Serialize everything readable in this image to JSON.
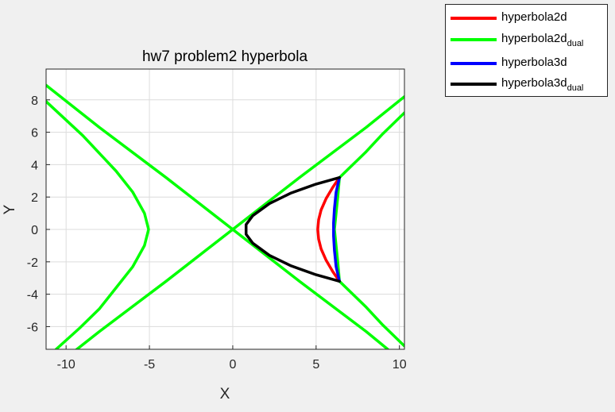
{
  "chart_data": {
    "type": "line",
    "title": "hw7 problem2 hyperbola",
    "xlabel": "X",
    "ylabel": "Y",
    "xlim": [
      -11.2,
      10.3
    ],
    "ylim": [
      -7.4,
      9.9
    ],
    "xticks": [
      -10,
      -5,
      0,
      5,
      10
    ],
    "xtick_labels": [
      "-10",
      "-5",
      "0",
      "5",
      "10"
    ],
    "yticks": [
      -6,
      -4,
      -2,
      0,
      2,
      4,
      6,
      8
    ],
    "ytick_labels": [
      "-6",
      "-4",
      "-2",
      "0",
      "2",
      "4",
      "6",
      "8"
    ],
    "grid": true,
    "legend_position": "outside top-right",
    "series": [
      {
        "name": "hyperbola2d",
        "color": "#ff0000",
        "style": "solid",
        "segments": [
          [
            [
              6.4,
              3.2
            ],
            [
              6.0,
              2.6
            ],
            [
              5.6,
              1.9
            ],
            [
              5.3,
              1.2
            ],
            [
              5.15,
              0.6
            ],
            [
              5.1,
              0.0
            ],
            [
              5.15,
              -0.6
            ],
            [
              5.3,
              -1.2
            ],
            [
              5.6,
              -1.9
            ],
            [
              6.0,
              -2.6
            ],
            [
              6.4,
              -3.2
            ]
          ]
        ]
      },
      {
        "name": "hyperbola2d",
        "name_subscript": "dual",
        "color": "#00ff00",
        "style": "solid",
        "segments": [
          [
            [
              -11.2,
              8.9
            ],
            [
              -8.0,
              6.3
            ],
            [
              -4.0,
              3.2
            ],
            [
              0.0,
              0.0
            ],
            [
              4.0,
              -3.2
            ],
            [
              8.0,
              -6.3
            ],
            [
              9.3,
              -7.4
            ]
          ],
          [
            [
              -11.2,
              -8.9
            ],
            [
              -8.0,
              -6.3
            ],
            [
              -4.0,
              -3.2
            ],
            [
              0.0,
              0.0
            ],
            [
              4.0,
              3.2
            ],
            [
              8.0,
              6.3
            ],
            [
              10.3,
              8.2
            ]
          ],
          [
            [
              -11.2,
              7.9
            ],
            [
              -9.0,
              5.8
            ],
            [
              -7.0,
              3.6
            ],
            [
              -6.0,
              2.3
            ],
            [
              -5.3,
              1.0
            ],
            [
              -5.05,
              0.0
            ],
            [
              -5.3,
              -1.0
            ],
            [
              -6.0,
              -2.3
            ],
            [
              -7.0,
              -3.6
            ],
            [
              -8.0,
              -4.9
            ],
            [
              -9.2,
              -6.1
            ],
            [
              -10.6,
              -7.4
            ]
          ],
          [
            [
              10.3,
              7.2
            ],
            [
              9.0,
              5.9
            ],
            [
              8.0,
              4.8
            ],
            [
              7.0,
              3.8
            ],
            [
              6.4,
              3.2
            ],
            [
              6.3,
              2.0
            ],
            [
              6.2,
              1.0
            ],
            [
              6.1,
              0.0
            ],
            [
              6.2,
              -1.0
            ],
            [
              6.3,
              -2.0
            ],
            [
              6.4,
              -3.2
            ],
            [
              7.0,
              -3.8
            ],
            [
              8.0,
              -4.8
            ],
            [
              9.0,
              -5.9
            ],
            [
              10.3,
              -7.2
            ]
          ]
        ]
      },
      {
        "name": "hyperbola3d",
        "color": "#0000ff",
        "style": "solid",
        "segments": [
          [
            [
              6.4,
              3.2
            ],
            [
              6.2,
              2.3
            ],
            [
              6.1,
              1.3
            ],
            [
              6.05,
              0.4
            ],
            [
              6.05,
              -0.4
            ],
            [
              6.1,
              -1.3
            ],
            [
              6.2,
              -2.3
            ],
            [
              6.4,
              -3.2
            ]
          ]
        ]
      },
      {
        "name": "hyperbola3d",
        "name_subscript": "dual",
        "color": "#000000",
        "style": "solid",
        "segments": [
          [
            [
              6.4,
              3.2
            ],
            [
              5.0,
              2.8
            ],
            [
              3.5,
              2.25
            ],
            [
              2.2,
              1.6
            ],
            [
              1.2,
              0.85
            ],
            [
              0.8,
              0.3
            ],
            [
              0.8,
              -0.3
            ],
            [
              1.2,
              -0.85
            ],
            [
              2.2,
              -1.6
            ],
            [
              3.5,
              -2.25
            ],
            [
              5.0,
              -2.8
            ],
            [
              6.4,
              -3.2
            ]
          ]
        ]
      }
    ]
  },
  "legend": {
    "items": [
      {
        "label": "hyperbola2d",
        "sub": "",
        "color": "#ff0000"
      },
      {
        "label": "hyperbola2d",
        "sub": "dual",
        "color": "#00ff00"
      },
      {
        "label": "hyperbola3d",
        "sub": "",
        "color": "#0000ff"
      },
      {
        "label": "hyperbola3d",
        "sub": "dual",
        "color": "#000000"
      }
    ]
  }
}
